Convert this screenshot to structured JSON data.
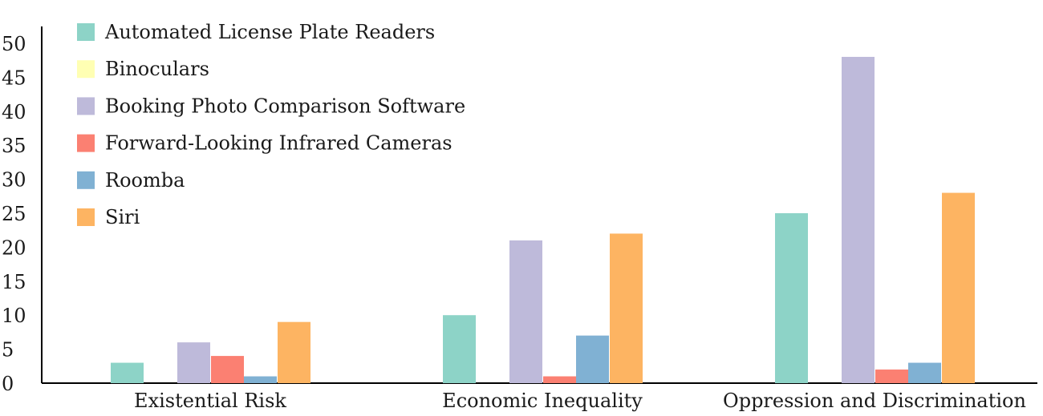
{
  "chart_data": {
    "type": "bar",
    "title": "",
    "xlabel": "",
    "ylabel": "",
    "ylim": [
      0,
      52
    ],
    "yticks": [
      0,
      5,
      10,
      15,
      20,
      25,
      30,
      35,
      40,
      45,
      50
    ],
    "grid": false,
    "legend_position": "top-left",
    "categories": [
      "Existential Risk",
      "Economic Inequality",
      "Oppression and Discrimination"
    ],
    "series": [
      {
        "name": "Automated License Plate Readers",
        "color": "#8dd3c7",
        "values": [
          3,
          10,
          25
        ]
      },
      {
        "name": "Binoculars",
        "color": "#ffffb3",
        "values": [
          0,
          0,
          0
        ]
      },
      {
        "name": "Booking Photo Comparison Software",
        "color": "#bebada",
        "values": [
          6,
          21,
          48
        ]
      },
      {
        "name": "Forward-Looking Infrared Cameras",
        "color": "#fb8072",
        "values": [
          4,
          1,
          2
        ]
      },
      {
        "name": "Roomba",
        "color": "#80b1d3",
        "values": [
          1,
          7,
          3
        ]
      },
      {
        "name": "Siri",
        "color": "#fdb462",
        "values": [
          9,
          22,
          28
        ]
      }
    ]
  }
}
